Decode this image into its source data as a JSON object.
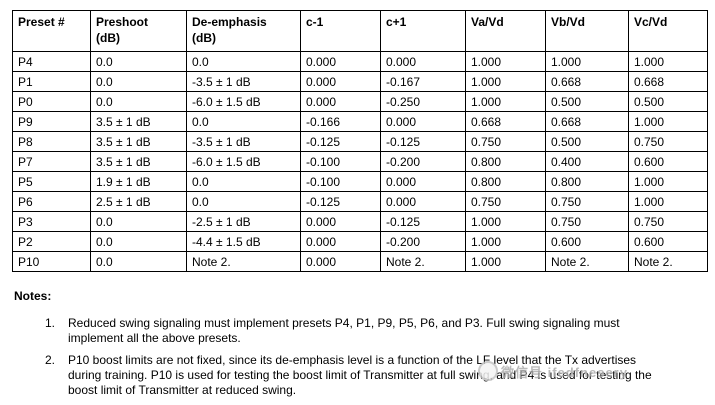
{
  "table": {
    "headers": [
      "Preset #",
      "Preshoot\n(dB)",
      "De-emphasis\n(dB)",
      "c-1",
      "c+1",
      "Va/Vd",
      "Vb/Vd",
      "Vc/Vd"
    ],
    "rows": [
      [
        "P4",
        "0.0",
        "0.0",
        "0.000",
        "0.000",
        "1.000",
        "1.000",
        "1.000"
      ],
      [
        "P1",
        "0.0",
        "-3.5 ± 1 dB",
        "0.000",
        "-0.167",
        "1.000",
        "0.668",
        "0.668"
      ],
      [
        "P0",
        "0.0",
        "-6.0 ± 1.5 dB",
        "0.000",
        "-0.250",
        "1.000",
        "0.500",
        "0.500"
      ],
      [
        "P9",
        "3.5 ± 1 dB",
        "0.0",
        "-0.166",
        "0.000",
        "0.668",
        "0.668",
        "1.000"
      ],
      [
        "P8",
        "3.5 ± 1 dB",
        "-3.5 ± 1 dB",
        "-0.125",
        "-0.125",
        "0.750",
        "0.500",
        "0.750"
      ],
      [
        "P7",
        "3.5 ± 1 dB",
        "-6.0 ± 1.5 dB",
        "-0.100",
        "-0.200",
        "0.800",
        "0.400",
        "0.600"
      ],
      [
        "P5",
        "1.9 ± 1 dB",
        "0.0",
        "-0.100",
        "0.000",
        "0.800",
        "0.800",
        "1.000"
      ],
      [
        "P6",
        "2.5 ± 1 dB",
        "0.0",
        "-0.125",
        "0.000",
        "0.750",
        "0.750",
        "1.000"
      ],
      [
        "P3",
        "0.0",
        "-2.5 ± 1 dB",
        "0.000",
        "-0.125",
        "1.000",
        "0.750",
        "0.750"
      ],
      [
        "P2",
        "0.0",
        "-4.4 ± 1.5 dB",
        "0.000",
        "-0.200",
        "1.000",
        "0.600",
        "0.600"
      ],
      [
        "P10",
        "0.0",
        "Note 2.",
        "0.000",
        "Note 2.",
        "1.000",
        "Note 2.",
        "Note 2."
      ]
    ]
  },
  "notes": {
    "heading": "Notes:",
    "items": [
      {
        "num": "1.",
        "text": "Reduced swing signaling must implement presets P4, P1, P9, P5, P6, and P3. Full swing signaling must\nimplement all the above presets."
      },
      {
        "num": "2.",
        "text": "P10 boost limits are not fixed, since its de-emphasis level is a function of the LF level that the Tx advertises\nduring training. P10 is used for testing the boost limit of Transmitter at full swing, and P4 is used for testing the\nboost limit of Transmitter at reduced swing."
      }
    ]
  },
  "watermark": {
    "icon": "wechat-logo",
    "text": "微信号 ifedfnesery"
  }
}
